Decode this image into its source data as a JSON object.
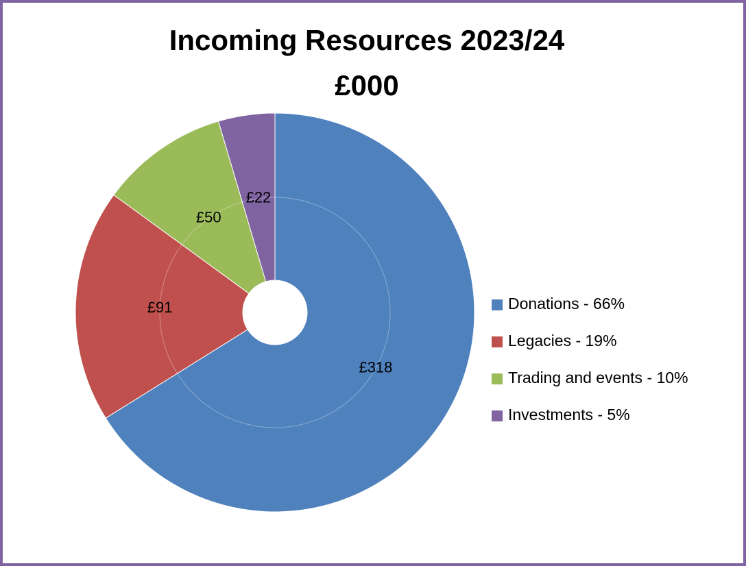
{
  "chart_data": {
    "type": "donut",
    "title": "Incoming Resources 2023/24",
    "subtitle": "£000",
    "categories": [
      "Donations - 66%",
      "Legacies - 19%",
      "Trading and events  - 10%",
      "Investments - 5%"
    ],
    "values": [
      318,
      91,
      50,
      22
    ],
    "value_labels": [
      "£318",
      "£91",
      "£50",
      "£22"
    ],
    "colors": [
      "#4f81bd",
      "#c0504d",
      "#9bbb59",
      "#8064a2"
    ],
    "legend": "right"
  }
}
